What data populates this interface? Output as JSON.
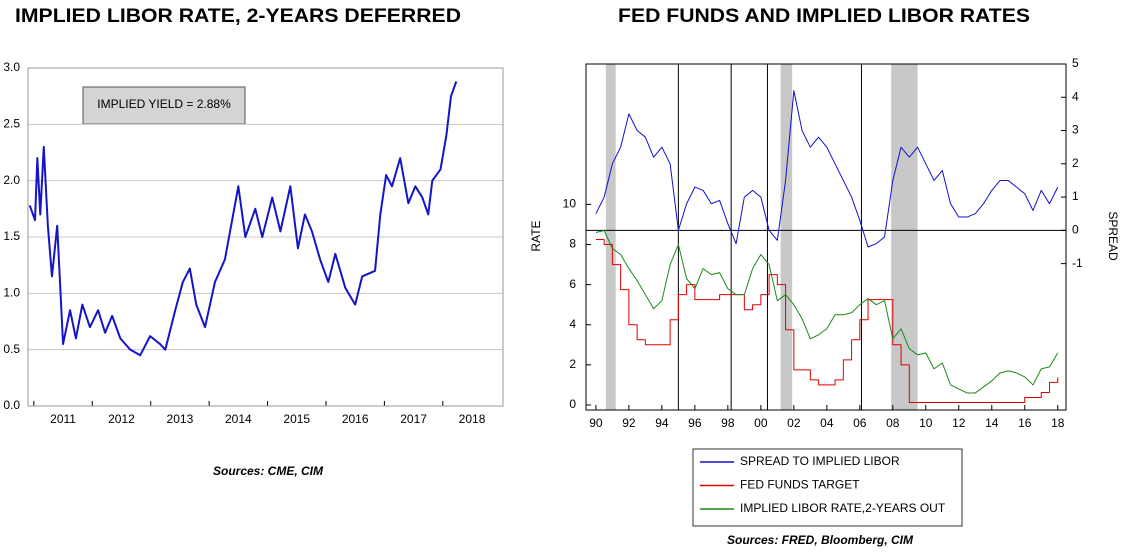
{
  "chart_data": [
    {
      "type": "line",
      "title": "IMPLIED LIBOR RATE, 2-YEARS DEFERRED",
      "annotation": "IMPLIED YIELD = 2.88%",
      "source": "Sources:  CME, CIM",
      "x": [
        2010.93,
        2011.02,
        2011.06,
        2011.11,
        2011.17,
        2011.24,
        2011.31,
        2011.4,
        2011.5,
        2011.62,
        2011.72,
        2011.83,
        2011.96,
        2012.1,
        2012.22,
        2012.34,
        2012.48,
        2012.65,
        2012.82,
        2012.99,
        2013.16,
        2013.25,
        2013.42,
        2013.55,
        2013.67,
        2013.78,
        2013.93,
        2014.1,
        2014.27,
        2014.5,
        2014.62,
        2014.79,
        2014.91,
        2015.08,
        2015.22,
        2015.39,
        2015.52,
        2015.64,
        2015.76,
        2015.9,
        2016.04,
        2016.16,
        2016.33,
        2016.5,
        2016.62,
        2016.84,
        2016.93,
        2017.03,
        2017.13,
        2017.27,
        2017.41,
        2017.53,
        2017.65,
        2017.75,
        2017.82,
        2017.96,
        2018.06,
        2018.14,
        2018.23
      ],
      "series": [
        {
          "color": "#1414c8",
          "values": [
            1.78,
            1.65,
            2.2,
            1.7,
            2.3,
            1.6,
            1.15,
            1.6,
            0.55,
            0.85,
            0.6,
            0.9,
            0.7,
            0.85,
            0.65,
            0.8,
            0.6,
            0.5,
            0.45,
            0.62,
            0.55,
            0.5,
            0.85,
            1.1,
            1.22,
            0.9,
            0.7,
            1.1,
            1.3,
            1.95,
            1.5,
            1.75,
            1.5,
            1.85,
            1.55,
            1.95,
            1.4,
            1.7,
            1.55,
            1.3,
            1.1,
            1.35,
            1.05,
            0.9,
            1.15,
            1.2,
            1.7,
            2.05,
            1.95,
            2.2,
            1.8,
            1.95,
            1.85,
            1.7,
            2.0,
            2.1,
            2.4,
            2.75,
            2.88
          ]
        }
      ],
      "xlim": [
        2010.9,
        2019.03
      ],
      "xticks": [
        2011,
        2012,
        2013,
        2014,
        2015,
        2016,
        2017,
        2018
      ],
      "ylim": [
        0,
        3
      ],
      "yticks": [
        {
          "value": 0,
          "label": "0.0"
        },
        0.5,
        {
          "value": 1,
          "label": "1.0"
        },
        1.5,
        {
          "value": 2,
          "label": "2.0"
        },
        2.5,
        {
          "value": 3,
          "label": "3.0"
        }
      ],
      "grid": true
    },
    {
      "type": "line",
      "title": "FED FUNDS AND IMPLIED LIBOR RATES",
      "source": "Sources:  FRED, Bloomberg, CIM",
      "ylabel": "RATE",
      "y2label": "SPREAD",
      "x": [
        1990,
        1990.5,
        1991,
        1991.5,
        1992,
        1992.5,
        1993,
        1993.5,
        1994,
        1994.5,
        1995,
        1995.5,
        1996,
        1996.5,
        1997,
        1997.5,
        1998,
        1998.5,
        1999,
        1999.5,
        2000,
        2000.5,
        2001,
        2001.5,
        2002,
        2002.5,
        2003,
        2003.5,
        2004,
        2004.5,
        2005,
        2005.5,
        2006,
        2006.5,
        2007,
        2007.5,
        2008,
        2008.5,
        2009,
        2009.5,
        2010,
        2010.5,
        2011,
        2011.5,
        2012,
        2012.5,
        2013,
        2013.5,
        2014,
        2014.5,
        2015,
        2015.5,
        2016,
        2016.5,
        2017,
        2017.5,
        2018
      ],
      "series": [
        {
          "name": "SPREAD TO IMPLIED LIBOR",
          "color": "#1010d0",
          "axis": "y2",
          "values": [
            0.5,
            1.0,
            2.0,
            2.5,
            3.5,
            3.0,
            2.8,
            2.2,
            2.5,
            2.0,
            0.0,
            0.8,
            1.3,
            1.2,
            0.8,
            0.9,
            0.2,
            -0.4,
            1.0,
            1.2,
            1.0,
            0.0,
            -0.3,
            1.5,
            4.2,
            3.0,
            2.5,
            2.8,
            2.5,
            2.0,
            1.5,
            1.0,
            0.3,
            -0.5,
            -0.4,
            -0.2,
            1.5,
            2.5,
            2.2,
            2.5,
            2.0,
            1.5,
            1.8,
            0.8,
            0.4,
            0.4,
            0.5,
            0.8,
            1.2,
            1.5,
            1.5,
            1.3,
            1.1,
            0.6,
            1.2,
            0.8,
            1.3
          ]
        },
        {
          "name": "FED FUNDS TARGET",
          "color": "#e00000",
          "step": true,
          "values": [
            8.25,
            8.0,
            7.0,
            5.75,
            4.0,
            3.25,
            3.0,
            3.0,
            3.0,
            4.25,
            5.5,
            6.0,
            5.25,
            5.25,
            5.25,
            5.5,
            5.5,
            5.5,
            4.75,
            5.0,
            5.5,
            6.5,
            6.0,
            3.75,
            1.75,
            1.75,
            1.25,
            1.0,
            1.0,
            1.25,
            2.25,
            3.25,
            4.25,
            5.25,
            5.25,
            5.25,
            3.0,
            2.0,
            0.125,
            0.125,
            0.125,
            0.125,
            0.125,
            0.125,
            0.125,
            0.125,
            0.125,
            0.125,
            0.125,
            0.125,
            0.125,
            0.125,
            0.375,
            0.375,
            0.625,
            1.125,
            1.375
          ]
        },
        {
          "name": "IMPLIED LIBOR RATE,2-YEARS OUT",
          "color": "#1a8a1a",
          "values": [
            8.6,
            8.7,
            7.8,
            7.5,
            6.8,
            6.2,
            5.5,
            4.8,
            5.2,
            7.0,
            8.0,
            6.3,
            5.8,
            6.8,
            6.5,
            6.6,
            5.8,
            5.5,
            5.5,
            6.8,
            7.5,
            7.0,
            5.2,
            5.5,
            5.0,
            4.3,
            3.3,
            3.5,
            3.8,
            4.5,
            4.5,
            4.6,
            5.0,
            5.3,
            5.0,
            5.2,
            3.3,
            3.8,
            2.8,
            2.5,
            2.6,
            1.8,
            2.1,
            1.0,
            0.8,
            0.6,
            0.6,
            0.9,
            1.2,
            1.6,
            1.7,
            1.6,
            1.4,
            1.0,
            1.8,
            1.9,
            2.6
          ]
        }
      ],
      "xlim": [
        1989.4,
        2018.5
      ],
      "xticks": [
        {
          "value": 1990,
          "label": "90"
        },
        {
          "value": 1992,
          "label": "92"
        },
        {
          "value": 1994,
          "label": "94"
        },
        {
          "value": 1996,
          "label": "96"
        },
        {
          "value": 1998,
          "label": "98"
        },
        {
          "value": 2000,
          "label": "00"
        },
        {
          "value": 2002,
          "label": "02"
        },
        {
          "value": 2004,
          "label": "04"
        },
        {
          "value": 2006,
          "label": "06"
        },
        {
          "value": 2008,
          "label": "08"
        },
        {
          "value": 2010,
          "label": "10"
        },
        {
          "value": 2012,
          "label": "12"
        },
        {
          "value": 2014,
          "label": "14"
        },
        {
          "value": 2016,
          "label": "16"
        },
        {
          "value": 2018,
          "label": "18"
        }
      ],
      "ylim": [
        -0.25,
        17
      ],
      "yticks": [
        0,
        2,
        4,
        6,
        8,
        10
      ],
      "y2lim": [
        -5.4,
        5
      ],
      "y2ticks": [
        -1,
        0,
        1,
        2,
        3,
        4,
        5
      ],
      "shaded_ranges": [
        [
          1990.6,
          1991.2
        ],
        [
          2001.2,
          2001.9
        ],
        [
          2007.9,
          2009.5
        ]
      ],
      "vertical_lines": [
        1995.0,
        1998.2,
        2000.4,
        2006.1
      ],
      "hlines": [
        {
          "value": 0,
          "axis": "y2"
        }
      ],
      "legend": "bottom",
      "grid": false
    }
  ]
}
